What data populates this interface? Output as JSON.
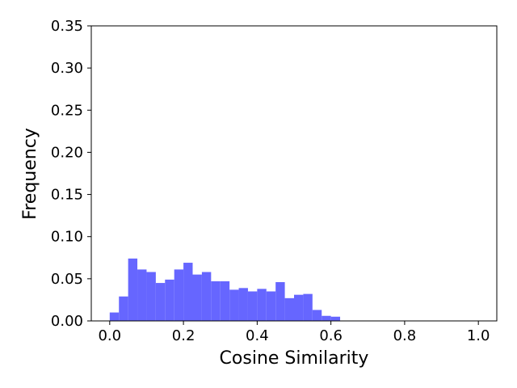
{
  "chart_data": {
    "type": "histogram",
    "xlabel": "Cosine Similarity",
    "ylabel": "Frequency",
    "bins": [
      0,
      0.025,
      0.05,
      0.075,
      0.1,
      0.125,
      0.15,
      0.175,
      0.2,
      0.225,
      0.25,
      0.275,
      0.3,
      0.325,
      0.35,
      0.375,
      0.4,
      0.425,
      0.45,
      0.475,
      0.5,
      0.525,
      0.55,
      0.575,
      0.6,
      0.625
    ],
    "values": [
      0.01,
      0.029,
      0.074,
      0.061,
      0.058,
      0.045,
      0.049,
      0.061,
      0.069,
      0.055,
      0.058,
      0.047,
      0.047,
      0.037,
      0.039,
      0.035,
      0.038,
      0.035,
      0.046,
      0.027,
      0.031,
      0.032,
      0.013,
      0.006,
      0.005
    ],
    "color": "#6666ff",
    "xlim": [
      -0.05,
      1.05
    ],
    "xticks": [
      {
        "value": 0,
        "label": "0.0"
      },
      {
        "value": 0.2,
        "label": "0.2"
      },
      {
        "value": 0.4,
        "label": "0.4"
      },
      {
        "value": 0.6,
        "label": "0.6"
      },
      {
        "value": 0.8,
        "label": "0.8"
      },
      {
        "value": 1,
        "label": "1.0"
      }
    ],
    "ylim": [
      0,
      0.35
    ],
    "yticks": [
      {
        "value": 0,
        "label": "0.00"
      },
      {
        "value": 0.05,
        "label": "0.05"
      },
      {
        "value": 0.1,
        "label": "0.10"
      },
      {
        "value": 0.15,
        "label": "0.15"
      },
      {
        "value": 0.2,
        "label": "0.20"
      },
      {
        "value": 0.25,
        "label": "0.25"
      },
      {
        "value": 0.3,
        "label": "0.30"
      },
      {
        "value": 0.35,
        "label": "0.35"
      }
    ]
  }
}
